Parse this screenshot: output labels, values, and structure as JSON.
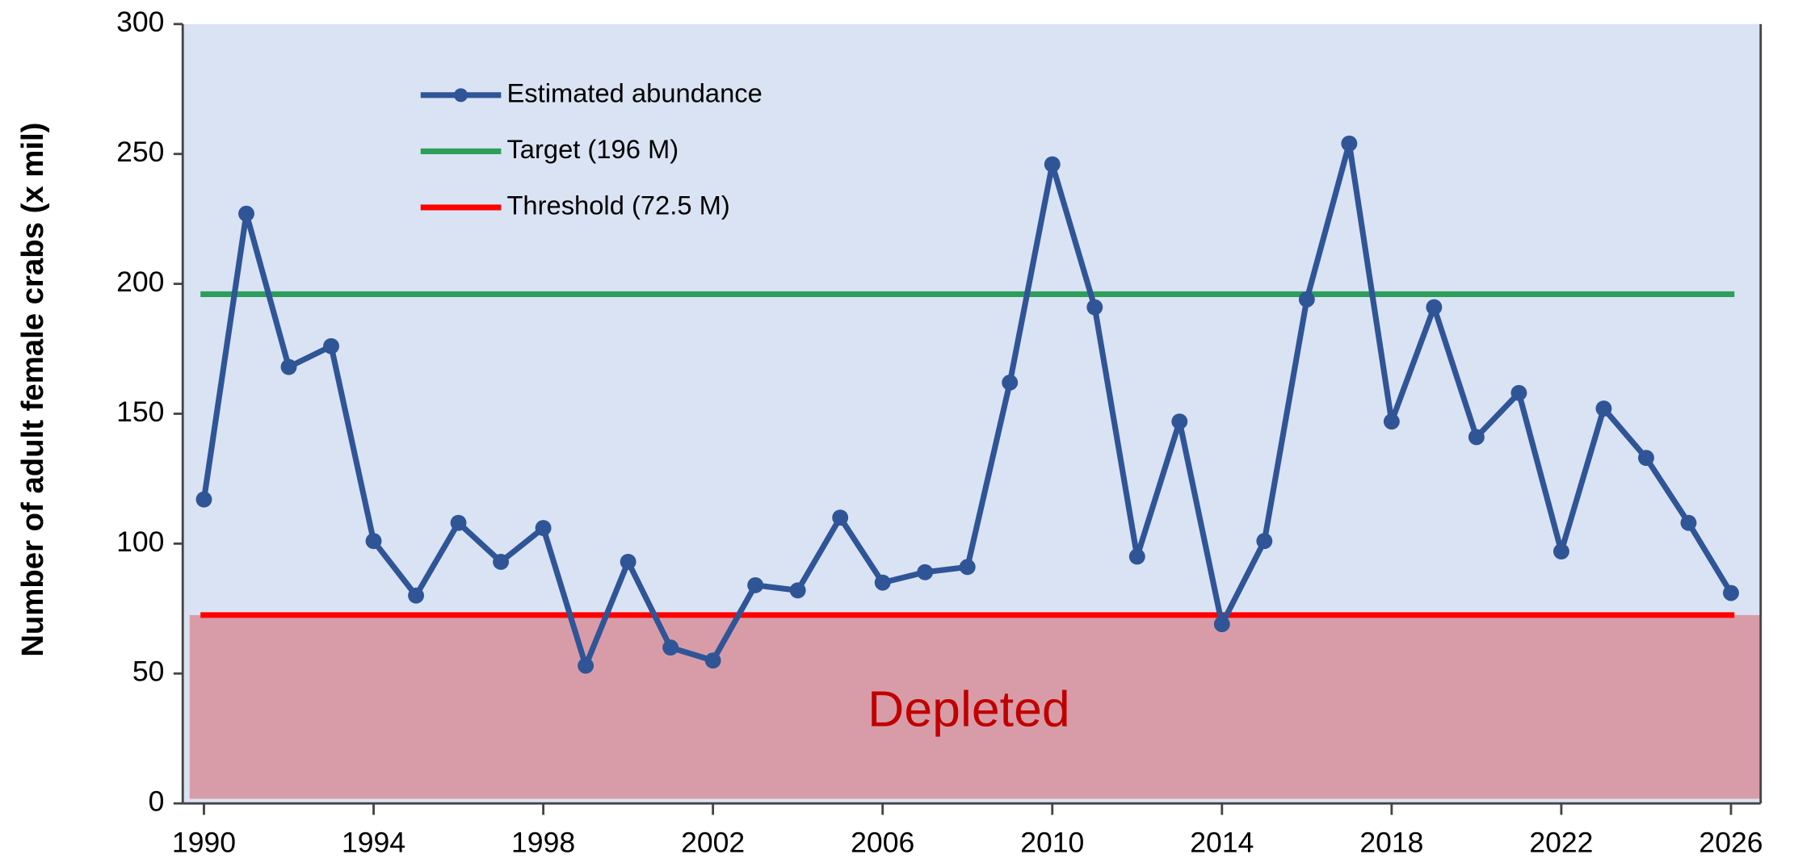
{
  "chart_data": {
    "type": "line",
    "y_label": "Number of adult female crabs (x mil)",
    "x": [
      1990,
      1991,
      1992,
      1993,
      1994,
      1995,
      1996,
      1997,
      1998,
      1999,
      2000,
      2001,
      2002,
      2003,
      2004,
      2005,
      2006,
      2007,
      2008,
      2009,
      2010,
      2011,
      2012,
      2013,
      2014,
      2015,
      2016,
      2017,
      2018,
      2019,
      2020,
      2021,
      2022,
      2023,
      2024,
      2025,
      2026
    ],
    "series": [
      {
        "name": "Estimated abundance",
        "color": "#2f5597",
        "values": [
          117,
          227,
          168,
          176,
          101,
          80,
          108,
          93,
          106,
          53,
          93,
          60,
          55,
          84,
          82,
          110,
          85,
          89,
          91,
          162,
          246,
          191,
          95,
          147,
          69,
          101,
          194,
          254,
          147,
          191,
          141,
          158,
          97,
          152,
          133,
          108,
          81
        ]
      }
    ],
    "reference_lines": [
      {
        "name": "Target (196 M)",
        "value": 196,
        "color": "#2e9e5b"
      },
      {
        "name": "Threshold (72.5 M)",
        "value": 72.5,
        "color": "#ff0000"
      }
    ],
    "region": {
      "label": "Depleted",
      "color": "#d89ca8",
      "label_color": "#c00000"
    },
    "background": "#dae3f3",
    "xlim": [
      1989.5,
      2026.7
    ],
    "xticks": [
      1990,
      1994,
      1998,
      2002,
      2006,
      2010,
      2014,
      2018,
      2022,
      2026
    ],
    "ylim": [
      0,
      300
    ],
    "yticks": [
      0,
      50,
      100,
      150,
      200,
      250,
      300
    ]
  }
}
